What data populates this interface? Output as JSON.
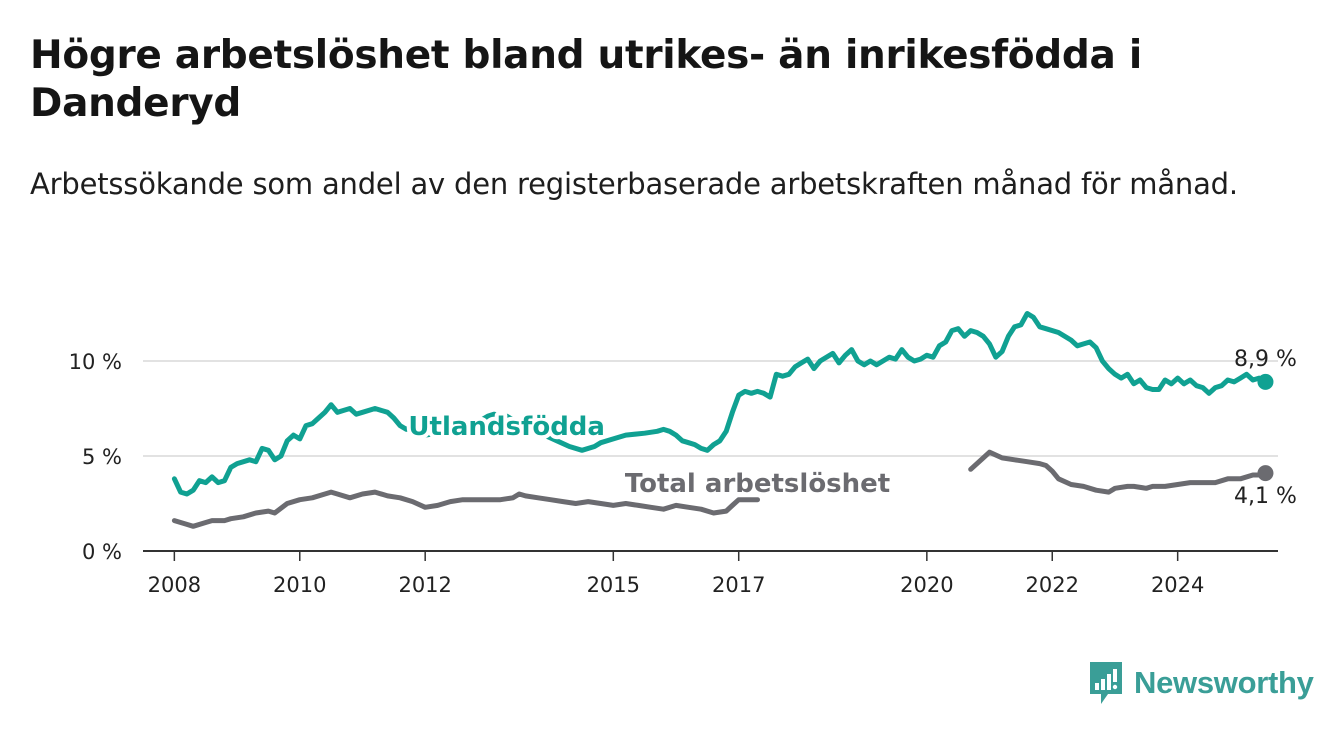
{
  "title": "Högre arbetslöshet bland utrikes- än inrikesfödda i Danderyd",
  "subtitle": "Arbetssökande som andel av den registerbaserade arbetskraften månad för månad.",
  "logo": {
    "text": "Newsworthy",
    "icon": "bar-chart-logo-icon",
    "color": "#3a9e97"
  },
  "colors": {
    "utlandsfodda": "#10a192",
    "total": "#6b6b70",
    "grid": "#d9d9d9",
    "axis": "#333333"
  },
  "chart_data": {
    "type": "line",
    "ylim": [
      0,
      13
    ],
    "yticks": [
      {
        "value": 0,
        "label": "0 %"
      },
      {
        "value": 5,
        "label": "5 %"
      },
      {
        "value": 10,
        "label": "10 %"
      }
    ],
    "xlim": [
      2007.5,
      2025.6
    ],
    "xticks": [
      {
        "value": 2008,
        "label": "2008"
      },
      {
        "value": 2010,
        "label": "2010"
      },
      {
        "value": 2012,
        "label": "2012"
      },
      {
        "value": 2015,
        "label": "2015"
      },
      {
        "value": 2017,
        "label": "2017"
      },
      {
        "value": 2020,
        "label": "2020"
      },
      {
        "value": 2022,
        "label": "2022"
      },
      {
        "value": 2024,
        "label": "2024"
      }
    ],
    "grid": "horizontal",
    "series": [
      {
        "name": "Utlandsfödda",
        "color_key": "utlandsfodda",
        "end_label": "8,9 %",
        "points": [
          [
            2008.0,
            3.8
          ],
          [
            2008.1,
            3.1
          ],
          [
            2008.2,
            3.0
          ],
          [
            2008.3,
            3.2
          ],
          [
            2008.4,
            3.7
          ],
          [
            2008.5,
            3.6
          ],
          [
            2008.6,
            3.9
          ],
          [
            2008.7,
            3.6
          ],
          [
            2008.8,
            3.7
          ],
          [
            2008.9,
            4.4
          ],
          [
            2009.0,
            4.6
          ],
          [
            2009.2,
            4.8
          ],
          [
            2009.3,
            4.7
          ],
          [
            2009.4,
            5.4
          ],
          [
            2009.5,
            5.3
          ],
          [
            2009.6,
            4.8
          ],
          [
            2009.7,
            5.0
          ],
          [
            2009.8,
            5.8
          ],
          [
            2009.9,
            6.1
          ],
          [
            2010.0,
            5.9
          ],
          [
            2010.1,
            6.6
          ],
          [
            2010.2,
            6.7
          ],
          [
            2010.3,
            7.0
          ],
          [
            2010.4,
            7.3
          ],
          [
            2010.5,
            7.7
          ],
          [
            2010.6,
            7.3
          ],
          [
            2010.7,
            7.4
          ],
          [
            2010.8,
            7.5
          ],
          [
            2010.9,
            7.2
          ],
          [
            2011.0,
            7.3
          ],
          [
            2011.2,
            7.5
          ],
          [
            2011.4,
            7.3
          ],
          [
            2011.5,
            7.0
          ],
          [
            2011.6,
            6.6
          ],
          [
            2011.7,
            6.4
          ],
          [
            2011.8,
            6.6
          ],
          [
            2011.9,
            6.5
          ],
          [
            2012.0,
            6.1
          ],
          [
            2012.2,
            6.2
          ],
          [
            2012.3,
            6.5
          ],
          [
            2012.5,
            6.8
          ],
          [
            2012.7,
            6.7
          ],
          [
            2012.9,
            6.9
          ],
          [
            2013.0,
            7.1
          ],
          [
            2013.1,
            7.2
          ],
          [
            2013.2,
            7.1
          ],
          null,
          [
            2013.3,
            7.1
          ],
          [
            2013.4,
            6.9
          ],
          [
            2013.5,
            6.6
          ],
          [
            2013.7,
            6.3
          ],
          [
            2013.9,
            6.1
          ],
          [
            2014.1,
            5.8
          ],
          [
            2014.3,
            5.5
          ],
          [
            2014.5,
            5.3
          ],
          [
            2014.7,
            5.5
          ],
          [
            2014.8,
            5.7
          ],
          [
            2015.0,
            5.9
          ],
          [
            2015.2,
            6.1
          ],
          [
            2015.5,
            6.2
          ],
          [
            2015.7,
            6.3
          ],
          [
            2015.8,
            6.4
          ],
          [
            2015.9,
            6.3
          ],
          [
            2016.0,
            6.1
          ],
          [
            2016.1,
            5.8
          ],
          [
            2016.2,
            5.7
          ],
          [
            2016.3,
            5.6
          ],
          [
            2016.4,
            5.4
          ],
          [
            2016.5,
            5.3
          ],
          [
            2016.6,
            5.6
          ],
          [
            2016.7,
            5.8
          ],
          [
            2016.8,
            6.3
          ],
          [
            2016.9,
            7.3
          ],
          [
            2017.0,
            8.2
          ],
          [
            2017.1,
            8.4
          ],
          [
            2017.2,
            8.3
          ],
          [
            2017.3,
            8.4
          ],
          [
            2017.4,
            8.3
          ],
          [
            2017.5,
            8.1
          ],
          [
            2017.6,
            9.3
          ],
          [
            2017.7,
            9.2
          ],
          [
            2017.8,
            9.3
          ],
          [
            2017.9,
            9.7
          ],
          [
            2018.0,
            9.9
          ],
          [
            2018.1,
            10.1
          ],
          [
            2018.2,
            9.6
          ],
          [
            2018.3,
            10.0
          ],
          [
            2018.5,
            10.4
          ],
          [
            2018.6,
            9.9
          ],
          [
            2018.7,
            10.3
          ],
          [
            2018.8,
            10.6
          ],
          [
            2018.9,
            10.0
          ],
          [
            2019.0,
            9.8
          ],
          [
            2019.1,
            10.0
          ],
          [
            2019.2,
            9.8
          ],
          [
            2019.4,
            10.2
          ],
          [
            2019.5,
            10.1
          ],
          [
            2019.6,
            10.6
          ],
          [
            2019.7,
            10.2
          ],
          [
            2019.8,
            10.0
          ],
          [
            2019.9,
            10.1
          ],
          [
            2020.0,
            10.3
          ],
          [
            2020.1,
            10.2
          ],
          [
            2020.2,
            10.8
          ],
          [
            2020.3,
            11.0
          ],
          [
            2020.4,
            11.6
          ],
          [
            2020.5,
            11.7
          ],
          [
            2020.6,
            11.3
          ],
          [
            2020.7,
            11.6
          ],
          [
            2020.8,
            11.5
          ],
          [
            2020.9,
            11.3
          ],
          [
            2021.0,
            10.9
          ],
          [
            2021.1,
            10.2
          ],
          [
            2021.2,
            10.5
          ],
          [
            2021.3,
            11.3
          ],
          [
            2021.4,
            11.8
          ],
          [
            2021.5,
            11.9
          ],
          [
            2021.6,
            12.5
          ],
          [
            2021.7,
            12.3
          ],
          [
            2021.8,
            11.8
          ],
          [
            2021.9,
            11.7
          ],
          [
            2022.1,
            11.5
          ],
          [
            2022.3,
            11.1
          ],
          [
            2022.4,
            10.8
          ],
          [
            2022.5,
            10.9
          ],
          [
            2022.6,
            11.0
          ],
          [
            2022.7,
            10.7
          ],
          [
            2022.8,
            10.0
          ],
          [
            2022.9,
            9.6
          ],
          [
            2023.0,
            9.3
          ],
          [
            2023.1,
            9.1
          ],
          [
            2023.2,
            9.3
          ],
          [
            2023.3,
            8.8
          ],
          [
            2023.4,
            9.0
          ],
          [
            2023.5,
            8.6
          ],
          [
            2023.6,
            8.5
          ],
          [
            2023.7,
            8.5
          ],
          [
            2023.8,
            9.0
          ],
          [
            2023.9,
            8.8
          ],
          [
            2024.0,
            9.1
          ],
          [
            2024.1,
            8.8
          ],
          [
            2024.2,
            9.0
          ],
          [
            2024.3,
            8.7
          ],
          [
            2024.4,
            8.6
          ],
          [
            2024.5,
            8.3
          ],
          [
            2024.6,
            8.6
          ],
          [
            2024.7,
            8.7
          ],
          [
            2024.8,
            9.0
          ],
          [
            2024.9,
            8.9
          ],
          [
            2025.0,
            9.1
          ],
          [
            2025.1,
            9.3
          ],
          [
            2025.2,
            9.0
          ],
          [
            2025.3,
            9.1
          ],
          [
            2025.4,
            8.9
          ]
        ]
      },
      {
        "name": "Total arbetslöshet",
        "color_key": "total",
        "end_label": "4,1 %",
        "points": [
          [
            2008.0,
            1.6
          ],
          [
            2008.2,
            1.4
          ],
          [
            2008.3,
            1.3
          ],
          [
            2008.5,
            1.5
          ],
          [
            2008.6,
            1.6
          ],
          [
            2008.8,
            1.6
          ],
          [
            2008.9,
            1.7
          ],
          [
            2009.1,
            1.8
          ],
          [
            2009.3,
            2.0
          ],
          [
            2009.5,
            2.1
          ],
          [
            2009.6,
            2.0
          ],
          [
            2009.8,
            2.5
          ],
          [
            2010.0,
            2.7
          ],
          [
            2010.2,
            2.8
          ],
          [
            2010.4,
            3.0
          ],
          [
            2010.5,
            3.1
          ],
          [
            2010.6,
            3.0
          ],
          [
            2010.8,
            2.8
          ],
          [
            2011.0,
            3.0
          ],
          [
            2011.2,
            3.1
          ],
          [
            2011.4,
            2.9
          ],
          [
            2011.6,
            2.8
          ],
          [
            2011.8,
            2.6
          ],
          [
            2012.0,
            2.3
          ],
          [
            2012.2,
            2.4
          ],
          [
            2012.4,
            2.6
          ],
          [
            2012.6,
            2.7
          ],
          [
            2012.8,
            2.7
          ],
          [
            2013.0,
            2.7
          ],
          [
            2013.2,
            2.7
          ],
          [
            2013.4,
            2.8
          ],
          [
            2013.5,
            3.0
          ],
          [
            2013.6,
            2.9
          ],
          [
            2013.8,
            2.8
          ],
          [
            2014.0,
            2.7
          ],
          [
            2014.2,
            2.6
          ],
          [
            2014.4,
            2.5
          ],
          [
            2014.6,
            2.6
          ],
          [
            2014.8,
            2.5
          ],
          [
            2015.0,
            2.4
          ],
          [
            2015.2,
            2.5
          ],
          [
            2015.4,
            2.4
          ],
          [
            2015.6,
            2.3
          ],
          [
            2015.8,
            2.2
          ],
          [
            2016.0,
            2.4
          ],
          [
            2016.2,
            2.3
          ],
          [
            2016.4,
            2.2
          ],
          [
            2016.6,
            2.0
          ],
          [
            2016.8,
            2.1
          ],
          [
            2016.9,
            2.4
          ],
          [
            2017.0,
            2.7
          ],
          [
            2017.2,
            2.7
          ],
          [
            2017.3,
            2.7
          ],
          null,
          [
            2020.7,
            4.3
          ],
          [
            2020.9,
            4.9
          ],
          [
            2021.0,
            5.2
          ],
          [
            2021.2,
            4.9
          ],
          [
            2021.4,
            4.8
          ],
          [
            2021.6,
            4.7
          ],
          [
            2021.8,
            4.6
          ],
          [
            2021.9,
            4.5
          ],
          [
            2022.0,
            4.2
          ],
          [
            2022.1,
            3.8
          ],
          [
            2022.3,
            3.5
          ],
          [
            2022.5,
            3.4
          ],
          [
            2022.7,
            3.2
          ],
          [
            2022.9,
            3.1
          ],
          [
            2023.0,
            3.3
          ],
          [
            2023.2,
            3.4
          ],
          [
            2023.3,
            3.4
          ],
          [
            2023.5,
            3.3
          ],
          [
            2023.6,
            3.4
          ],
          [
            2023.8,
            3.4
          ],
          [
            2024.0,
            3.5
          ],
          [
            2024.2,
            3.6
          ],
          [
            2024.4,
            3.6
          ],
          [
            2024.6,
            3.6
          ],
          [
            2024.8,
            3.8
          ],
          [
            2025.0,
            3.8
          ],
          [
            2025.2,
            4.0
          ],
          [
            2025.3,
            4.0
          ],
          [
            2025.4,
            4.1
          ]
        ]
      }
    ],
    "labels": [
      {
        "text": "Utlandsfödda",
        "x": 2013.3,
        "y": 6.1,
        "color_key": "utlandsfodda"
      },
      {
        "text": "Total arbetslöshet",
        "x": 2017.3,
        "y": 3.1,
        "color_key": "total"
      }
    ]
  }
}
